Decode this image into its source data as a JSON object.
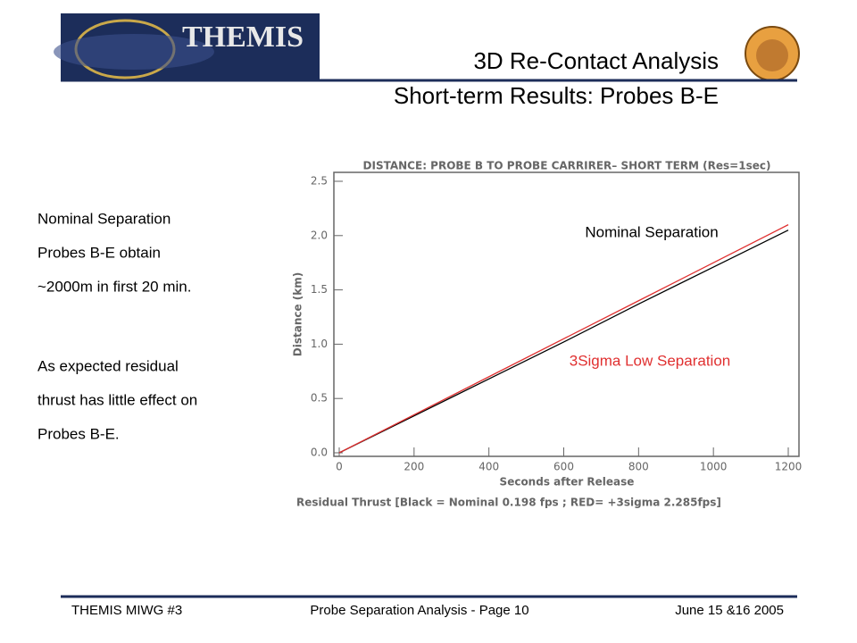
{
  "header": {
    "logo_text": "THEMIS",
    "title": "3D Re-Contact Analysis",
    "subtitle": "Short-term Results: Probes B-E"
  },
  "body": {
    "paragraphs": [
      [
        "Nominal Separation",
        "Probes B-E obtain",
        "~2000m in first 20 min."
      ],
      [
        "As expected residual",
        "thrust has little effect on",
        "Probes B-E."
      ]
    ]
  },
  "chart_data": {
    "type": "line",
    "title": "DISTANCE: PROBE B TO PROBE CARRIRER– SHORT TERM (Res=1sec)",
    "x_label": "Seconds after Release",
    "y_label": "Distance (km)",
    "footnote": "Residual Thrust [Black = Nominal 0.198 fps ; RED= +3sigma 2.285fps]",
    "x": [
      0,
      200,
      400,
      600,
      800,
      1000,
      1200
    ],
    "series": [
      {
        "name": "Nominal Separation",
        "color": "#000000",
        "values": [
          0,
          0.34,
          0.68,
          1.02,
          1.37,
          1.71,
          2.05
        ]
      },
      {
        "name": "3Sigma Low Separation",
        "color": "#e03030",
        "values": [
          0,
          0.35,
          0.7,
          1.05,
          1.4,
          1.75,
          2.1
        ]
      }
    ],
    "xlim": [
      0,
      1200
    ],
    "ylim": [
      0,
      2.5
    ],
    "xticks": [
      0,
      200,
      400,
      600,
      800,
      1000,
      1200
    ],
    "yticks": [
      {
        "value": 0,
        "label": "0.0"
      },
      0.5,
      {
        "value": 1,
        "label": "1.0"
      },
      1.5,
      {
        "value": 2,
        "label": "2.0"
      },
      2.5
    ]
  },
  "footer": {
    "left": "THEMIS MIWG #3",
    "center": "Probe Separation Analysis - Page 10",
    "right": "June 15 &16 2005"
  }
}
